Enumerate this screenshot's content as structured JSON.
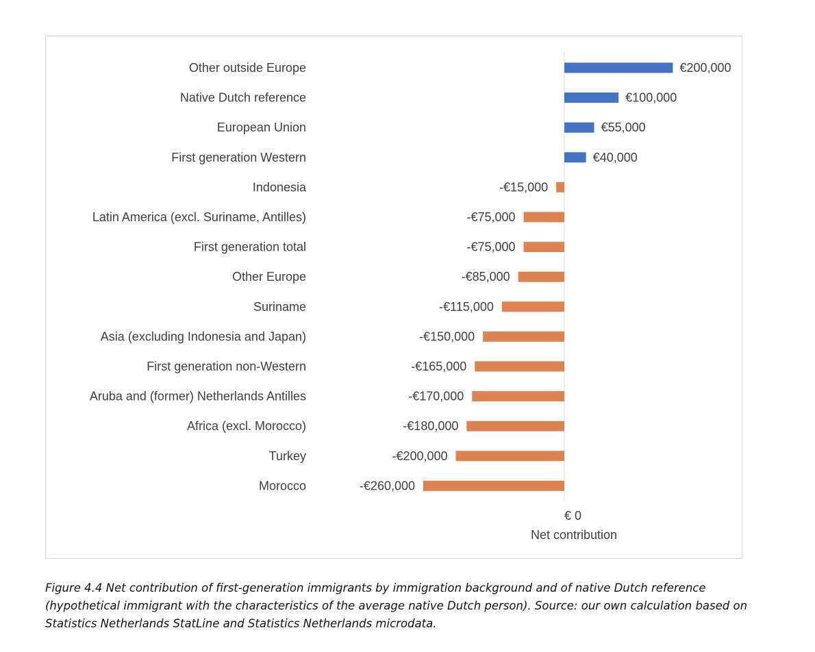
{
  "chart_data": {
    "type": "bar",
    "orientation": "horizontal",
    "title": "",
    "xlabel": "Net contribution",
    "ylabel": "",
    "zero_tick_label": "€ 0",
    "categories": [
      "Other outside Europe",
      "Native Dutch reference",
      "European Union",
      "First generation Western",
      "Indonesia",
      "Latin America (excl. Suriname, Antilles)",
      "First generation total",
      "Other Europe",
      "Suriname",
      "Asia (excluding Indonesia and Japan)",
      "First generation non-Western",
      "Aruba and (former) Netherlands Antilles",
      "Africa (excl. Morocco)",
      "Turkey",
      "Morocco"
    ],
    "values": [
      200000,
      100000,
      55000,
      40000,
      -15000,
      -75000,
      -75000,
      -85000,
      -115000,
      -150000,
      -165000,
      -170000,
      -180000,
      -200000,
      -260000
    ],
    "value_labels": [
      "€200,000",
      "€100,000",
      "€55,000",
      "€40,000",
      "-€15,000",
      "-€75,000",
      "-€75,000",
      "-€85,000",
      "-€115,000",
      "-€150,000",
      "-€165,000",
      "-€170,000",
      "-€180,000",
      "-€200,000",
      "-€260,000"
    ],
    "xlim": [
      -260000,
      200000
    ],
    "colors": {
      "positive": "#4472c4",
      "negative": "#dd8452"
    },
    "grid": false,
    "legend": "none"
  },
  "caption": "Figure 4.4 Net contribution of first-generation immigrants by immigration background and of native Dutch reference (hypothetical immigrant with the characteristics of the average native Dutch person). Source: our own calculation based on Statistics Netherlands StatLine and Statistics Netherlands microdata."
}
